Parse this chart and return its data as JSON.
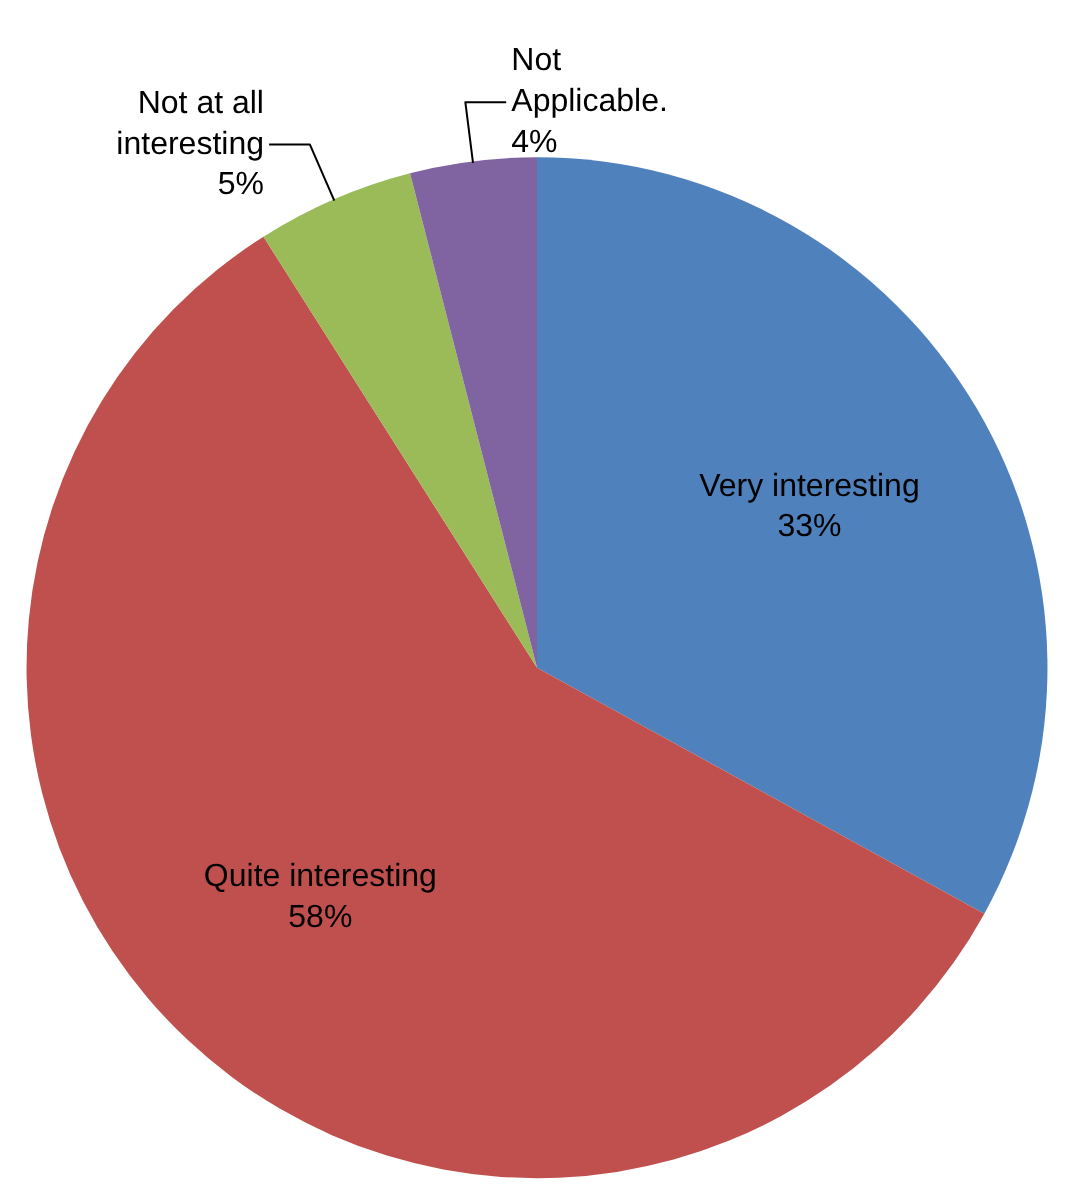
{
  "chart_data": {
    "type": "pie",
    "categories": [
      "Very interesting",
      "Quite interesting",
      "Not at all interesting",
      "Not Applicable."
    ],
    "values": [
      33,
      58,
      5,
      4
    ],
    "value_labels": [
      "33%",
      "58%",
      "5%",
      "4%"
    ],
    "colors": [
      "#4f81bd",
      "#c0504d",
      "#9bbb59",
      "#8064a2"
    ]
  }
}
